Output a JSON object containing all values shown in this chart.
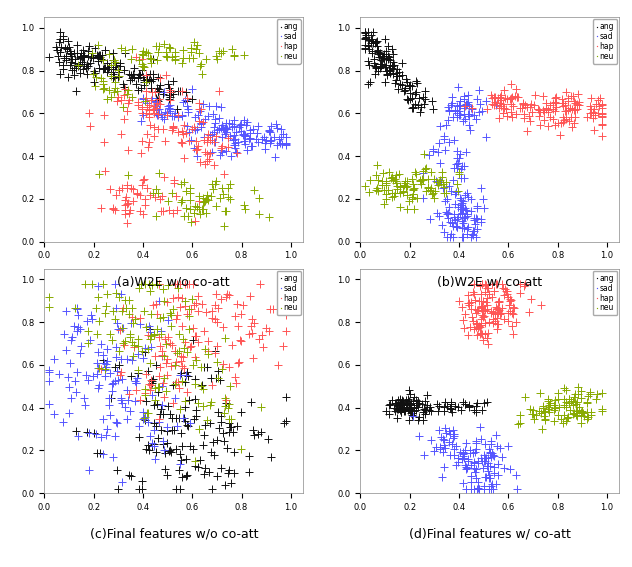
{
  "titles": [
    "(a)W2E w/o co-att",
    "(b)W2E w/ co-att",
    "(c)Final features w/o co-att",
    "(d)Final features w/ co-att"
  ],
  "legend_labels": [
    "ang",
    "sad",
    "hap",
    "neu"
  ],
  "colors": [
    "#111111",
    "#5555ff",
    "#ff5555",
    "#88aa00"
  ],
  "background": "#ffffff",
  "figsize": [
    6.32,
    5.67
  ],
  "dpi": 100,
  "marker_size": 6,
  "alpha": 1.0,
  "xlim": [
    0.0,
    1.05
  ],
  "ylim": [
    0.0,
    1.05
  ],
  "xticks": [
    0.0,
    0.2,
    0.4,
    0.6,
    0.8,
    1.0
  ],
  "yticks": [
    0.0,
    0.2,
    0.4,
    0.6,
    0.8,
    1.0
  ],
  "caption_fontsize": 9,
  "tick_fontsize": 6,
  "legend_fontsize": 5.5
}
